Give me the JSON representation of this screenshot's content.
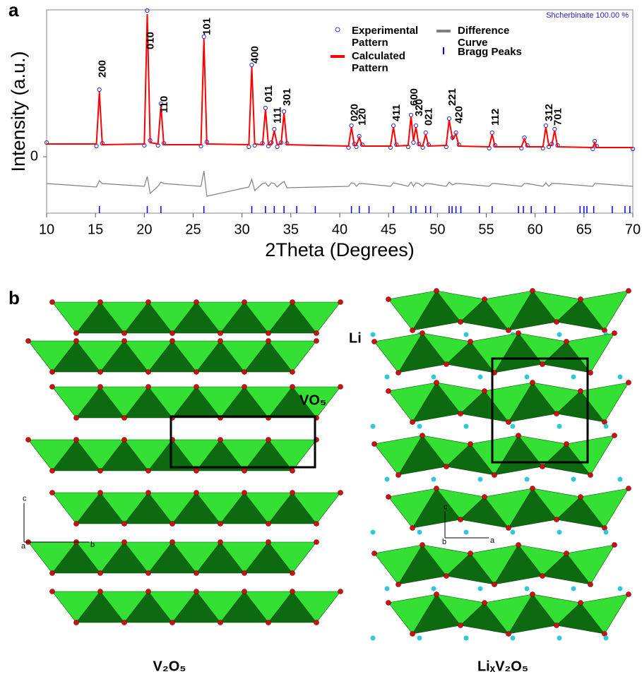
{
  "panel_labels": [
    "a",
    "b"
  ],
  "chart_data": {
    "type": "line",
    "phase_label": "Shcherbinaite   100.00 %",
    "x_label": "2Theta (Degrees)",
    "y_label": "Intensity (a.u.)",
    "xlim": [
      10,
      70
    ],
    "xticks": [
      10,
      15,
      20,
      25,
      30,
      35,
      40,
      45,
      50,
      55,
      60,
      65,
      70
    ],
    "ylim": [
      -80,
      208
    ],
    "yticks": [
      0
    ],
    "legend": "top-right",
    "x": [
      10,
      15.1,
      15.4,
      15.7,
      20.0,
      20.3,
      20.6,
      21.4,
      21.7,
      22.0,
      25.8,
      26.1,
      26.4,
      30.7,
      31.0,
      31.3,
      32.1,
      32.4,
      32.7,
      33.0,
      33.3,
      33.6,
      34.0,
      34.3,
      34.6,
      40.9,
      41.2,
      41.5,
      41.7,
      42.0,
      42.3,
      45.2,
      45.5,
      45.8,
      47.0,
      47.3,
      47.55,
      47.8,
      48.1,
      48.5,
      48.8,
      49.1,
      50.9,
      51.2,
      51.55,
      51.9,
      52.2,
      55.3,
      55.6,
      55.9,
      58.6,
      58.9,
      59.2,
      60.8,
      61.1,
      61.4,
      61.7,
      62.0,
      62.3,
      65.9,
      66.1,
      66.3,
      70
    ],
    "series": [
      {
        "name": "Experimental Pattern",
        "color": "#2a2ad0",
        "marker": "circle",
        "values": [
          20,
          15,
          95,
          19,
          16,
          207,
          23,
          16,
          75,
          19,
          15,
          170,
          21,
          14,
          130,
          16,
          19,
          69,
          15,
          20,
          39,
          14,
          20,
          64,
          19,
          13,
          44,
          18,
          14,
          29,
          17,
          13,
          44,
          17,
          14,
          59,
          20,
          44,
          18,
          13,
          34,
          17,
          14,
          54,
          27,
          34,
          17,
          12,
          34,
          16,
          12,
          27,
          16,
          12,
          44,
          14,
          18,
          39,
          16,
          11,
          22,
          15,
          11
        ]
      },
      {
        "name": "Calculated Pattern",
        "color": "#ff0000",
        "values": [
          18,
          18,
          92,
          17,
          18,
          202,
          20,
          18,
          72,
          17,
          17,
          167,
          18,
          17,
          127,
          18,
          17,
          67,
          17,
          17,
          37,
          17,
          18,
          62,
          17,
          15,
          42,
          16,
          16,
          27,
          15,
          15,
          42,
          15,
          16,
          57,
          22,
          42,
          16,
          15,
          32,
          15,
          16,
          52,
          25,
          32,
          15,
          14,
          32,
          14,
          14,
          25,
          14,
          14,
          42,
          16,
          16,
          37,
          14,
          13,
          20,
          13,
          13
        ]
      },
      {
        "name": "Difference Curve",
        "color": "#808080",
        "values": [
          -38,
          -43,
          -34,
          -38,
          -42,
          -28,
          -52,
          -42,
          -36,
          -38,
          -42,
          -20,
          -56,
          -43,
          -32,
          -48,
          -38,
          -37,
          -42,
          -37,
          -38,
          -43,
          -38,
          -35,
          -44,
          -42,
          -37,
          -38,
          -42,
          -38,
          -38,
          -42,
          -37,
          -38,
          -42,
          -36,
          -42,
          -37,
          -38,
          -42,
          -38,
          -38,
          -42,
          -36,
          -40,
          -38,
          -38,
          -42,
          -38,
          -38,
          -42,
          -38,
          -38,
          -42,
          -37,
          -42,
          -38,
          -38,
          -38,
          -42,
          -38,
          -38,
          -42
        ]
      },
      {
        "name": "Bragg Peaks",
        "color": "#0000ff",
        "marker": "tick",
        "x": [
          15.4,
          20.3,
          21.7,
          26.1,
          31.0,
          32.4,
          33.3,
          34.3,
          35.6,
          37.5,
          41.2,
          42.0,
          43.0,
          45.5,
          47.3,
          47.8,
          48.8,
          49.3,
          51.2,
          51.5,
          51.9,
          52.4,
          54.3,
          55.6,
          58.3,
          58.8,
          59.6,
          61.1,
          62.0,
          64.6,
          65.0,
          65.3,
          66.0,
          67.9,
          69.2,
          69.7
        ],
        "values": [
          -75,
          -75,
          -75,
          -75,
          -75,
          -75,
          -75,
          -75,
          -75,
          -75,
          -75,
          -75,
          -75,
          -75,
          -75,
          -75,
          -75,
          -75,
          -75,
          -75,
          -75,
          -75,
          -75,
          -75,
          -75,
          -75,
          -75,
          -75,
          -75,
          -75,
          -75,
          -75,
          -75,
          -75,
          -75,
          -75
        ]
      }
    ],
    "annotations": [
      {
        "text": "200",
        "x": 15.4,
        "y": 112
      },
      {
        "text": "010",
        "x": 20.3,
        "y": 152
      },
      {
        "text": "110",
        "x": 21.7,
        "y": 62
      },
      {
        "text": "101",
        "x": 26.1,
        "y": 172
      },
      {
        "text": "400",
        "x": 31.0,
        "y": 132
      },
      {
        "text": "011",
        "x": 32.4,
        "y": 77
      },
      {
        "text": "111",
        "x": 33.3,
        "y": 47
      },
      {
        "text": "301",
        "x": 34.3,
        "y": 72
      },
      {
        "text": "020",
        "x": 41.2,
        "y": 50
      },
      {
        "text": "120",
        "x": 42.0,
        "y": 44
      },
      {
        "text": "411",
        "x": 45.5,
        "y": 50
      },
      {
        "text": "600",
        "x": 47.3,
        "y": 72
      },
      {
        "text": "320",
        "x": 47.8,
        "y": 57
      },
      {
        "text": "021",
        "x": 48.8,
        "y": 44
      },
      {
        "text": "221",
        "x": 51.2,
        "y": 72
      },
      {
        "text": "420",
        "x": 51.9,
        "y": 47
      },
      {
        "text": "112",
        "x": 55.6,
        "y": 44
      },
      {
        "text": "312",
        "x": 61.1,
        "y": 50
      },
      {
        "text": "701",
        "x": 62.0,
        "y": 44
      }
    ]
  },
  "structures": [
    {
      "name": "V₂O₅",
      "polyhedron": "VO₅",
      "axes": [
        "c",
        "a",
        "b"
      ]
    },
    {
      "name": "LiₓV₂O₅",
      "ion": "Li",
      "axes": [
        "c",
        "b",
        "a"
      ]
    }
  ]
}
